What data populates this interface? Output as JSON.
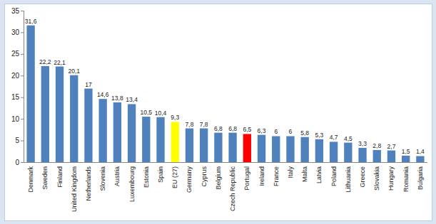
{
  "chart_data": {
    "type": "bar",
    "categories": [
      "Denmark",
      "Sweden",
      "Finland",
      "United Kingdom",
      "Netherlands",
      "Slovenia",
      "Austria",
      "Luxembourg",
      "Estonia",
      "Spain",
      "EU (27)",
      "Germany",
      "Cyprus",
      "Belgium",
      "Czech Republic",
      "Portugal",
      "Ireland",
      "France",
      "Italy",
      "Malta",
      "Latvia",
      "Poland",
      "Lithuania",
      "Greece",
      "Slovakia",
      "Hungary",
      "Romania",
      "Bulgaria"
    ],
    "values": [
      31.6,
      22.2,
      22.1,
      20.1,
      17,
      14.6,
      13.8,
      13.4,
      10.5,
      10.4,
      9.3,
      7.8,
      7.8,
      6.8,
      6.8,
      6.5,
      6.3,
      6,
      6,
      5.8,
      5.3,
      4.7,
      4.5,
      3.3,
      2.8,
      2.7,
      1.5,
      1.4
    ],
    "value_labels": [
      "31,6",
      "22,2",
      "22,1",
      "20,1",
      "17",
      "14,6",
      "13,8",
      "13,4",
      "10,5",
      "10,4",
      "9,3",
      "7,8",
      "7,8",
      "6,8",
      "6,8",
      "6,5",
      "6,3",
      "6",
      "6",
      "5,8",
      "5,3",
      "4,7",
      "4,5",
      "3,3",
      "2,8",
      "2,7",
      "1,5",
      "1,4"
    ],
    "colors": [
      "#4f81bd",
      "#4f81bd",
      "#4f81bd",
      "#4f81bd",
      "#4f81bd",
      "#4f81bd",
      "#4f81bd",
      "#4f81bd",
      "#4f81bd",
      "#4f81bd",
      "#ffff00",
      "#4f81bd",
      "#4f81bd",
      "#4f81bd",
      "#4f81bd",
      "#ff0000",
      "#4f81bd",
      "#4f81bd",
      "#4f81bd",
      "#4f81bd",
      "#4f81bd",
      "#4f81bd",
      "#4f81bd",
      "#4f81bd",
      "#4f81bd",
      "#4f81bd",
      "#4f81bd",
      "#4f81bd"
    ],
    "ylim": [
      0,
      35
    ],
    "yticks": [
      0,
      5,
      10,
      15,
      20,
      25,
      30,
      35
    ],
    "grid": false,
    "data_labels": true
  }
}
